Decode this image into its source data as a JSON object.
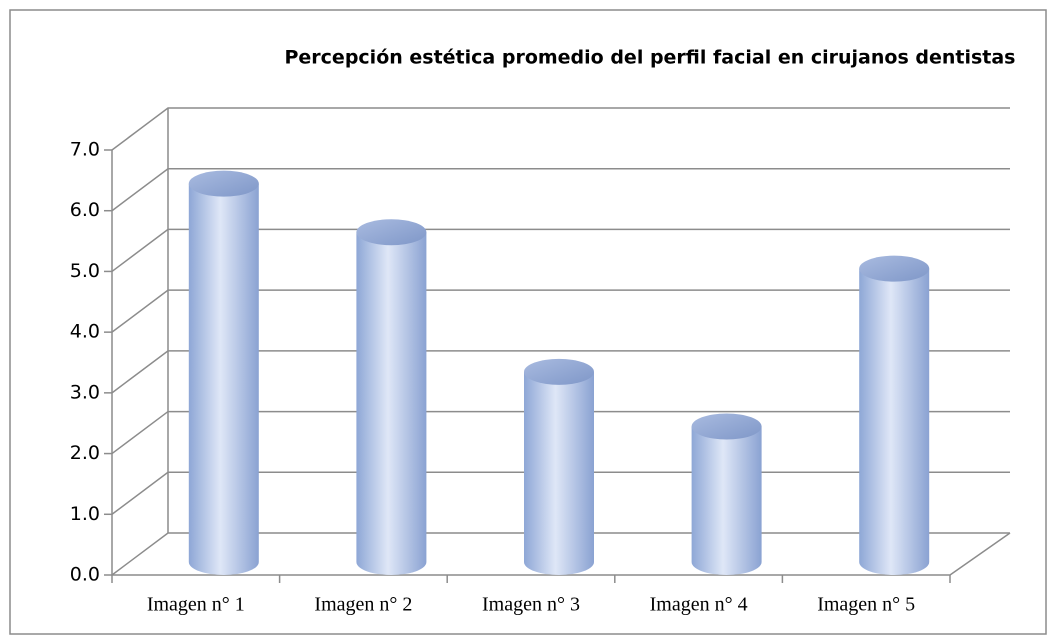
{
  "chart_data": {
    "type": "bar3d",
    "title": "Percepción estética promedio del perfil facial en cirujanos dentistas",
    "categories": [
      "Imagen n° 1",
      "Imagen n° 2",
      "Imagen n° 3",
      "Imagen n° 4",
      "Imagen n° 5"
    ],
    "values": [
      6.1,
      5.3,
      3.0,
      2.1,
      4.7
    ],
    "color": "#b3c6ea",
    "ylim": [
      0,
      7
    ],
    "yticks": [
      {
        "value": 0,
        "label": "0.0"
      },
      {
        "value": 1,
        "label": "1.0"
      },
      {
        "value": 2,
        "label": "2.0"
      },
      {
        "value": 3,
        "label": "3.0"
      },
      {
        "value": 4,
        "label": "4.0"
      },
      {
        "value": 5,
        "label": "5.0"
      },
      {
        "value": 6,
        "label": "6.0"
      },
      {
        "value": 7,
        "label": "7.0"
      }
    ],
    "grid": true
  }
}
